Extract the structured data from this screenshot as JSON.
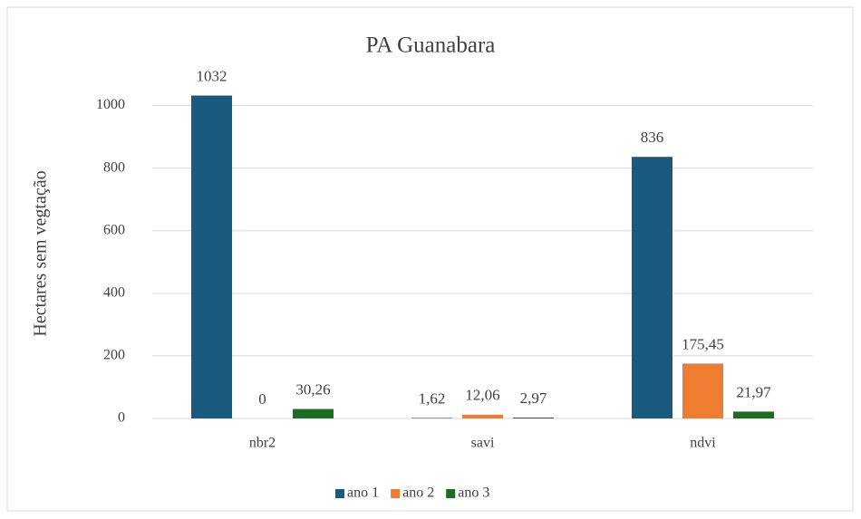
{
  "chart_data": {
    "type": "bar",
    "title": "PA Guanabara",
    "y_label": "Hectares sem vegtação",
    "categories": [
      "nbr2",
      "savi",
      "ndvi"
    ],
    "series": [
      {
        "name": "ano 1",
        "color": "#1a5a7e",
        "values": [
          1032,
          1.62,
          836
        ],
        "value_labels": [
          "1032",
          "1,62",
          "836"
        ]
      },
      {
        "name": "ano 2",
        "color": "#ed7d31",
        "values": [
          0,
          12.06,
          175.45
        ],
        "value_labels": [
          "0",
          "12,06",
          "175,45"
        ]
      },
      {
        "name": "ano 3",
        "color": "#1e6b24",
        "values": [
          30.26,
          2.97,
          21.97
        ],
        "value_labels": [
          "30,26",
          "2,97",
          "21,97"
        ]
      }
    ],
    "ylim": [
      0,
      1100
    ],
    "yticks": [
      0,
      200,
      400,
      600,
      800,
      1000
    ],
    "grid": true,
    "legend": "bottom"
  }
}
